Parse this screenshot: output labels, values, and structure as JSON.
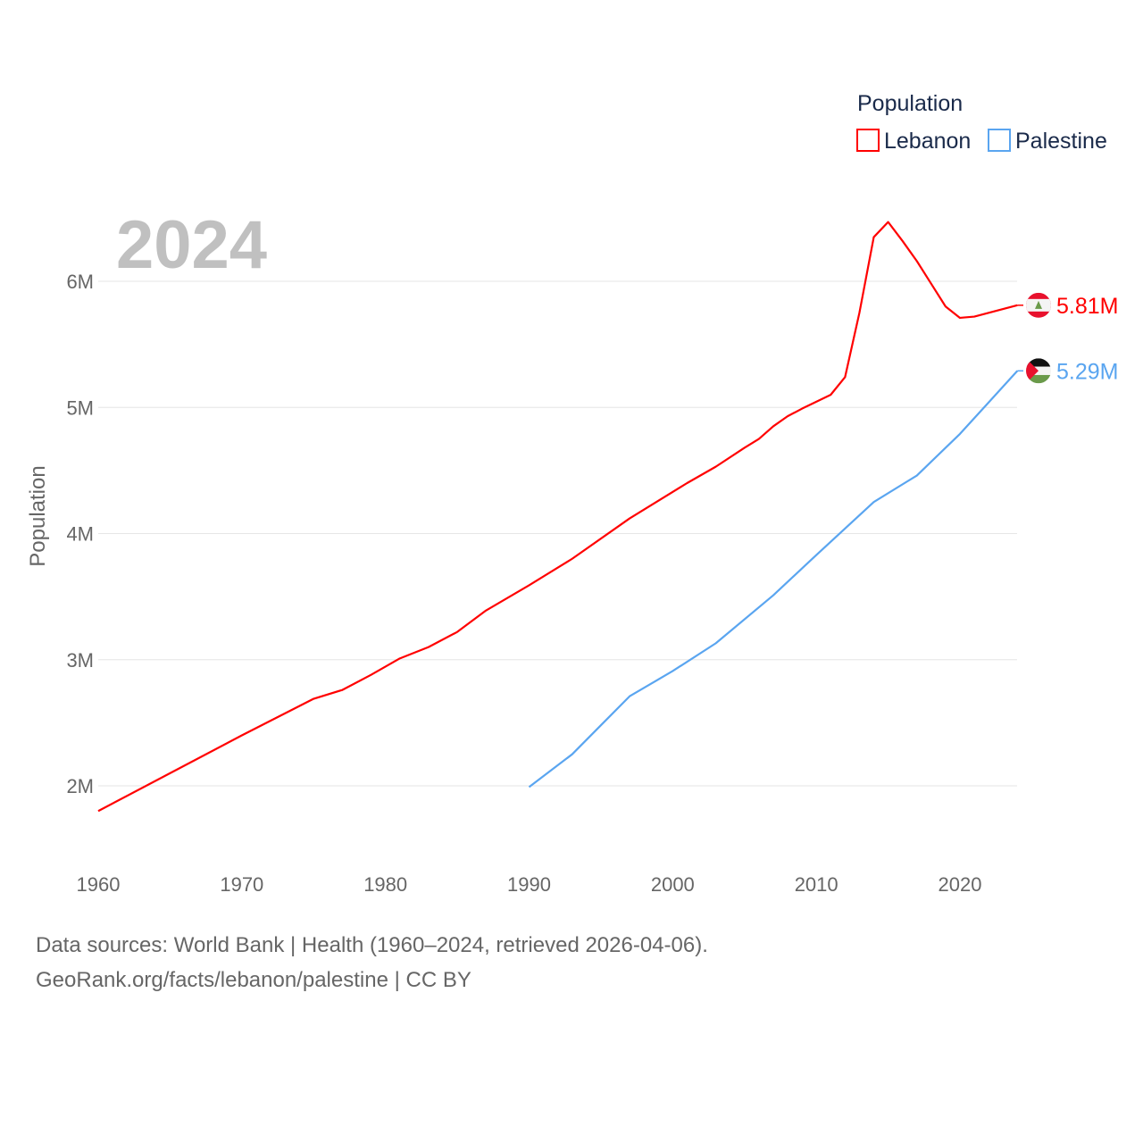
{
  "chart_data": {
    "type": "line",
    "title": "",
    "year_label": "2024",
    "xlabel": "",
    "ylabel": "Population",
    "xlim": [
      1960,
      2024
    ],
    "ylim": [
      1.8,
      6.5
    ],
    "x_ticks": [
      "1960",
      "1970",
      "1980",
      "1990",
      "2000",
      "2010",
      "2020"
    ],
    "y_ticks": [
      {
        "v": 2,
        "label": "2M"
      },
      {
        "v": 3,
        "label": "3M"
      },
      {
        "v": 4,
        "label": "4M"
      },
      {
        "v": 5,
        "label": "5M"
      },
      {
        "v": 6,
        "label": "6M"
      }
    ],
    "grid": true,
    "legend": {
      "title": "Population",
      "placement": "top-right"
    },
    "series": [
      {
        "name": "Lebanon",
        "color": "#ff0000",
        "end_label": "5.81M",
        "flag": "lebanon-flag",
        "points": [
          [
            1960,
            1.8
          ],
          [
            1965,
            2.1
          ],
          [
            1970,
            2.4
          ],
          [
            1975,
            2.69
          ],
          [
            1977,
            2.76
          ],
          [
            1979,
            2.88
          ],
          [
            1981,
            3.01
          ],
          [
            1983,
            3.1
          ],
          [
            1985,
            3.22
          ],
          [
            1987,
            3.39
          ],
          [
            1990,
            3.59
          ],
          [
            1993,
            3.8
          ],
          [
            1997,
            4.12
          ],
          [
            2001,
            4.4
          ],
          [
            2003,
            4.53
          ],
          [
            2005,
            4.68
          ],
          [
            2006,
            4.75
          ],
          [
            2007,
            4.85
          ],
          [
            2008,
            4.93
          ],
          [
            2009,
            4.99
          ],
          [
            2011,
            5.1
          ],
          [
            2012,
            5.24
          ],
          [
            2013,
            5.75
          ],
          [
            2014,
            6.35
          ],
          [
            2015,
            6.47
          ],
          [
            2016,
            6.32
          ],
          [
            2017,
            6.16
          ],
          [
            2018,
            5.98
          ],
          [
            2019,
            5.8
          ],
          [
            2020,
            5.71
          ],
          [
            2021,
            5.72
          ],
          [
            2022,
            5.75
          ],
          [
            2023,
            5.78
          ],
          [
            2024,
            5.81
          ]
        ]
      },
      {
        "name": "Palestine",
        "color": "#5aa5f0",
        "end_label": "5.29M",
        "flag": "palestine-flag",
        "points": [
          [
            1990,
            1.99
          ],
          [
            1993,
            2.25
          ],
          [
            1995,
            2.48
          ],
          [
            1997,
            2.71
          ],
          [
            2000,
            2.91
          ],
          [
            2003,
            3.13
          ],
          [
            2007,
            3.51
          ],
          [
            2010,
            3.83
          ],
          [
            2014,
            4.25
          ],
          [
            2017,
            4.46
          ],
          [
            2020,
            4.79
          ],
          [
            2022,
            5.04
          ],
          [
            2024,
            5.29
          ]
        ]
      }
    ]
  },
  "footer": {
    "line1": "Data sources: World Bank | Health (1960–2024, retrieved 2026-04-06).",
    "line2": "GeoRank.org/facts/lebanon/palestine | CC BY"
  }
}
